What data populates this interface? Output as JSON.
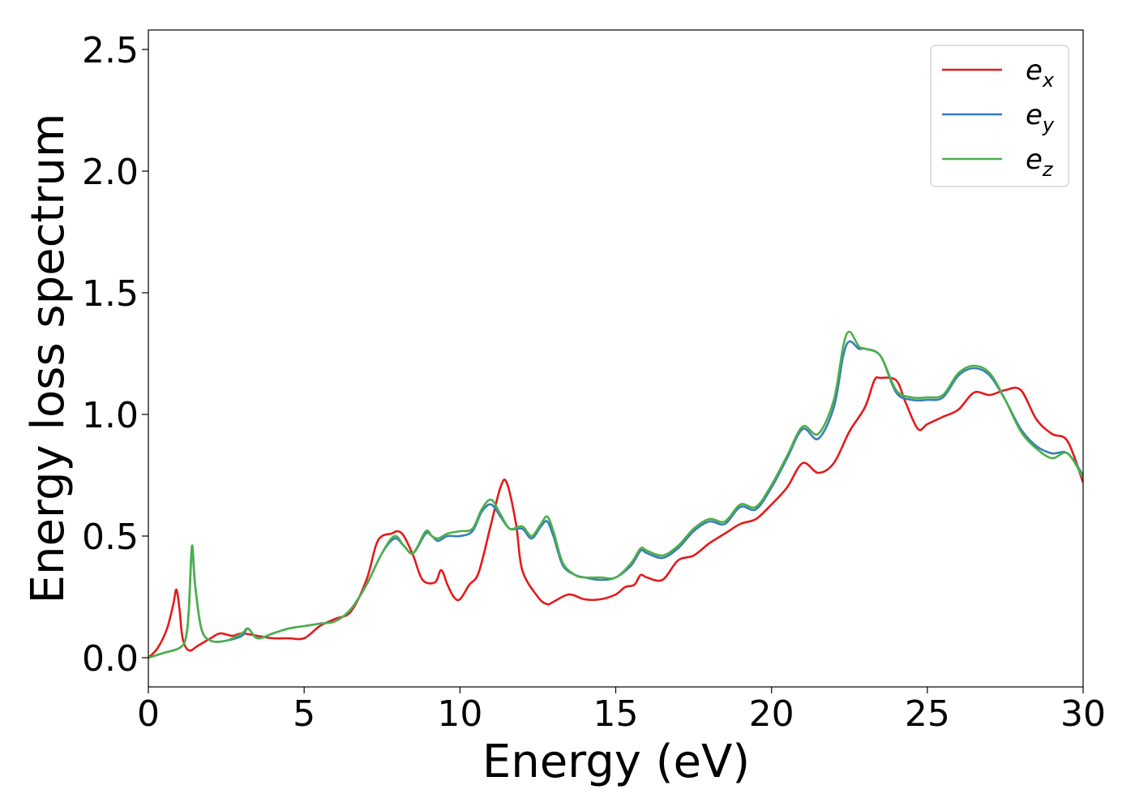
{
  "chart_data": {
    "type": "line",
    "xlabel": "Energy (eV)",
    "ylabel": "Energy loss spectrum",
    "xlim": [
      0,
      30
    ],
    "ylim": [
      -0.12,
      2.58
    ],
    "xticks": [
      0,
      5,
      10,
      15,
      20,
      25,
      30
    ],
    "yticks": [
      0.0,
      0.5,
      1.0,
      1.5,
      2.0,
      2.5
    ],
    "xtick_labels": [
      "0",
      "5",
      "10",
      "15",
      "20",
      "25",
      "30"
    ],
    "ytick_labels": [
      "0.0",
      "0.5",
      "1.0",
      "1.5",
      "2.0",
      "2.5"
    ],
    "grid": false,
    "legend_position": "top-right",
    "series": [
      {
        "name": "e",
        "subscript": "x",
        "color": "#e41a1c",
        "x": [
          0,
          0.3,
          0.6,
          0.8,
          0.9,
          1.0,
          1.1,
          1.3,
          1.6,
          2.0,
          2.3,
          2.7,
          3.0,
          3.5,
          4.0,
          4.5,
          5.0,
          5.5,
          6.0,
          6.5,
          7.0,
          7.3,
          7.5,
          7.8,
          8.0,
          8.2,
          8.5,
          8.8,
          9.2,
          9.4,
          9.6,
          9.8,
          10.0,
          10.3,
          10.6,
          11.0,
          11.3,
          11.5,
          11.8,
          12.0,
          12.5,
          12.8,
          13.0,
          13.5,
          14.0,
          14.5,
          15.0,
          15.3,
          15.6,
          15.8,
          16.0,
          16.5,
          17.0,
          17.5,
          18.0,
          18.5,
          19.0,
          19.5,
          20.0,
          20.5,
          21.0,
          21.5,
          22.0,
          22.5,
          23.0,
          23.3,
          23.5,
          24.0,
          24.3,
          24.7,
          25.0,
          25.5,
          26.0,
          26.5,
          27.0,
          27.5,
          28.0,
          28.5,
          29.0,
          29.5,
          30.0
        ],
        "y": [
          0.0,
          0.04,
          0.12,
          0.22,
          0.28,
          0.2,
          0.08,
          0.03,
          0.05,
          0.08,
          0.1,
          0.09,
          0.1,
          0.09,
          0.08,
          0.08,
          0.08,
          0.13,
          0.16,
          0.19,
          0.32,
          0.46,
          0.5,
          0.51,
          0.52,
          0.5,
          0.42,
          0.32,
          0.31,
          0.36,
          0.3,
          0.25,
          0.24,
          0.3,
          0.35,
          0.55,
          0.7,
          0.72,
          0.55,
          0.36,
          0.25,
          0.22,
          0.23,
          0.26,
          0.24,
          0.24,
          0.26,
          0.29,
          0.3,
          0.34,
          0.33,
          0.32,
          0.4,
          0.42,
          0.47,
          0.51,
          0.55,
          0.57,
          0.63,
          0.7,
          0.8,
          0.76,
          0.8,
          0.93,
          1.03,
          1.14,
          1.15,
          1.14,
          1.05,
          0.94,
          0.96,
          0.99,
          1.02,
          1.09,
          1.08,
          1.1,
          1.1,
          0.98,
          0.92,
          0.89,
          0.72
        ]
      },
      {
        "name": "e",
        "subscript": "y",
        "color": "#377eb8",
        "x": [
          0,
          0.5,
          1.0,
          1.2,
          1.3,
          1.4,
          1.5,
          1.7,
          2.0,
          2.5,
          3.0,
          3.2,
          3.5,
          4.0,
          4.5,
          5.0,
          5.5,
          6.0,
          6.5,
          7.0,
          7.5,
          7.9,
          8.2,
          8.5,
          8.9,
          9.1,
          9.3,
          9.6,
          10.0,
          10.4,
          10.7,
          11.0,
          11.3,
          11.6,
          12.0,
          12.3,
          12.6,
          12.8,
          13.0,
          13.3,
          13.7,
          14.0,
          14.5,
          15.0,
          15.5,
          15.8,
          16.0,
          16.5,
          17.0,
          17.5,
          18.0,
          18.5,
          19.0,
          19.5,
          20.0,
          20.5,
          21.0,
          21.5,
          22.0,
          22.3,
          22.5,
          22.8,
          23.0,
          23.5,
          24.0,
          24.5,
          25.0,
          25.5,
          26.0,
          26.5,
          27.0,
          27.5,
          28.0,
          28.5,
          29.0,
          29.5,
          30.0
        ],
        "y": [
          0.0,
          0.02,
          0.04,
          0.08,
          0.2,
          0.45,
          0.3,
          0.12,
          0.07,
          0.07,
          0.09,
          0.12,
          0.08,
          0.1,
          0.12,
          0.13,
          0.14,
          0.15,
          0.2,
          0.3,
          0.43,
          0.49,
          0.46,
          0.43,
          0.51,
          0.5,
          0.48,
          0.5,
          0.5,
          0.52,
          0.6,
          0.63,
          0.58,
          0.53,
          0.53,
          0.49,
          0.54,
          0.56,
          0.5,
          0.38,
          0.34,
          0.33,
          0.32,
          0.33,
          0.38,
          0.44,
          0.43,
          0.41,
          0.45,
          0.52,
          0.56,
          0.55,
          0.62,
          0.61,
          0.7,
          0.82,
          0.94,
          0.9,
          1.03,
          1.24,
          1.3,
          1.27,
          1.27,
          1.24,
          1.09,
          1.06,
          1.06,
          1.07,
          1.16,
          1.19,
          1.16,
          1.06,
          0.94,
          0.87,
          0.84,
          0.84,
          0.75
        ]
      },
      {
        "name": "e",
        "subscript": "z",
        "color": "#4daf4a",
        "x": [
          0,
          0.5,
          1.0,
          1.2,
          1.3,
          1.4,
          1.5,
          1.7,
          2.0,
          2.5,
          3.0,
          3.2,
          3.5,
          4.0,
          4.5,
          5.0,
          5.5,
          6.0,
          6.5,
          7.0,
          7.5,
          7.9,
          8.2,
          8.5,
          8.9,
          9.1,
          9.3,
          9.6,
          10.0,
          10.4,
          10.7,
          11.0,
          11.3,
          11.6,
          12.0,
          12.3,
          12.6,
          12.8,
          13.0,
          13.3,
          13.7,
          14.0,
          14.5,
          15.0,
          15.5,
          15.8,
          16.0,
          16.5,
          17.0,
          17.5,
          18.0,
          18.5,
          19.0,
          19.5,
          20.0,
          20.5,
          21.0,
          21.5,
          22.0,
          22.3,
          22.5,
          22.8,
          23.0,
          23.5,
          24.0,
          24.5,
          25.0,
          25.5,
          26.0,
          26.5,
          27.0,
          27.5,
          28.0,
          28.5,
          29.0,
          29.5,
          30.0
        ],
        "y": [
          0.0,
          0.02,
          0.04,
          0.08,
          0.2,
          0.46,
          0.3,
          0.12,
          0.07,
          0.07,
          0.1,
          0.12,
          0.08,
          0.1,
          0.12,
          0.13,
          0.14,
          0.15,
          0.2,
          0.3,
          0.43,
          0.5,
          0.46,
          0.43,
          0.52,
          0.5,
          0.49,
          0.51,
          0.52,
          0.53,
          0.61,
          0.65,
          0.59,
          0.53,
          0.54,
          0.5,
          0.55,
          0.58,
          0.52,
          0.39,
          0.34,
          0.33,
          0.33,
          0.33,
          0.39,
          0.45,
          0.44,
          0.42,
          0.46,
          0.53,
          0.57,
          0.56,
          0.63,
          0.62,
          0.71,
          0.83,
          0.95,
          0.92,
          1.06,
          1.28,
          1.34,
          1.28,
          1.27,
          1.24,
          1.1,
          1.07,
          1.07,
          1.08,
          1.17,
          1.2,
          1.17,
          1.06,
          0.93,
          0.86,
          0.82,
          0.84,
          0.74
        ]
      }
    ]
  }
}
